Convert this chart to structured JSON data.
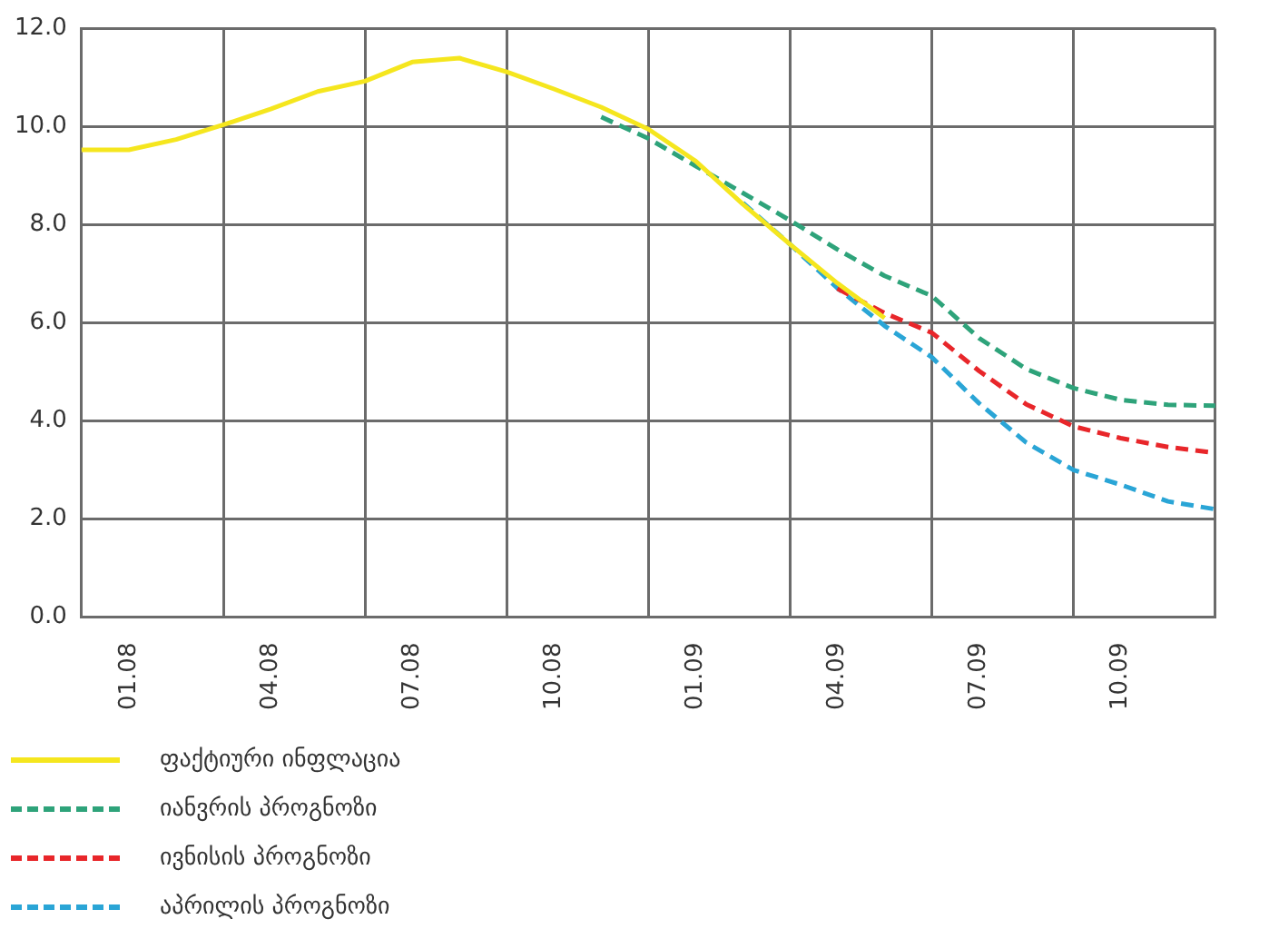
{
  "chart_data": {
    "type": "line",
    "categories": [
      null,
      "01.08",
      null,
      null,
      "04.08",
      null,
      null,
      "07.08",
      null,
      null,
      "10.08",
      null,
      null,
      "01.09",
      null,
      null,
      "04.09",
      null,
      null,
      "07.09",
      null,
      null,
      "10.09",
      null,
      null
    ],
    "series": [
      {
        "name": "ფაქტიური ინფლაცია",
        "color": "#f5e61e",
        "line_style": "solid",
        "values": [
          9.53,
          9.53,
          9.74,
          10.04,
          10.36,
          10.72,
          10.93,
          11.32,
          11.4,
          11.12,
          10.77,
          10.4,
          9.95,
          9.3,
          8.42,
          7.6,
          6.81,
          6.1,
          null,
          null,
          null,
          null,
          null,
          null,
          null
        ]
      },
      {
        "name": "იანვრის პროგნოზი",
        "color": "#2ea37a",
        "line_style": "dashed",
        "values": [
          null,
          null,
          null,
          null,
          null,
          null,
          null,
          null,
          null,
          null,
          null,
          10.2,
          9.76,
          9.2,
          8.65,
          8.09,
          7.5,
          6.96,
          6.55,
          5.69,
          5.06,
          4.67,
          4.43,
          4.33,
          4.31
        ]
      },
      {
        "name": "ივნისის პროგნოზი",
        "color": "#e8262a",
        "line_style": "dashed",
        "values": [
          null,
          null,
          null,
          null,
          null,
          null,
          null,
          null,
          null,
          null,
          null,
          null,
          null,
          null,
          null,
          null,
          6.7,
          6.2,
          5.8,
          5.02,
          4.34,
          3.89,
          3.65,
          3.47,
          3.35
        ]
      },
      {
        "name": "აპრილის პროგნოზი",
        "color": "#2aa5d6",
        "line_style": "dashed",
        "values": [
          null,
          null,
          null,
          null,
          null,
          null,
          null,
          null,
          null,
          null,
          null,
          null,
          null,
          null,
          8.45,
          7.6,
          6.71,
          5.94,
          5.3,
          4.36,
          3.56,
          3.0,
          2.7,
          2.36,
          2.2
        ]
      }
    ],
    "ylim": [
      0,
      12
    ],
    "yticks": [
      {
        "value": 0,
        "label": "0.0"
      },
      {
        "value": 2,
        "label": "2.0"
      },
      {
        "value": 4,
        "label": "4.0"
      },
      {
        "value": 6,
        "label": "6.0"
      },
      {
        "value": 8,
        "label": "8.0"
      },
      {
        "value": 10,
        "label": "10.0"
      },
      {
        "value": 12,
        "label": "12.0"
      }
    ],
    "grid": true,
    "legend": "bottom",
    "marker": "none"
  }
}
